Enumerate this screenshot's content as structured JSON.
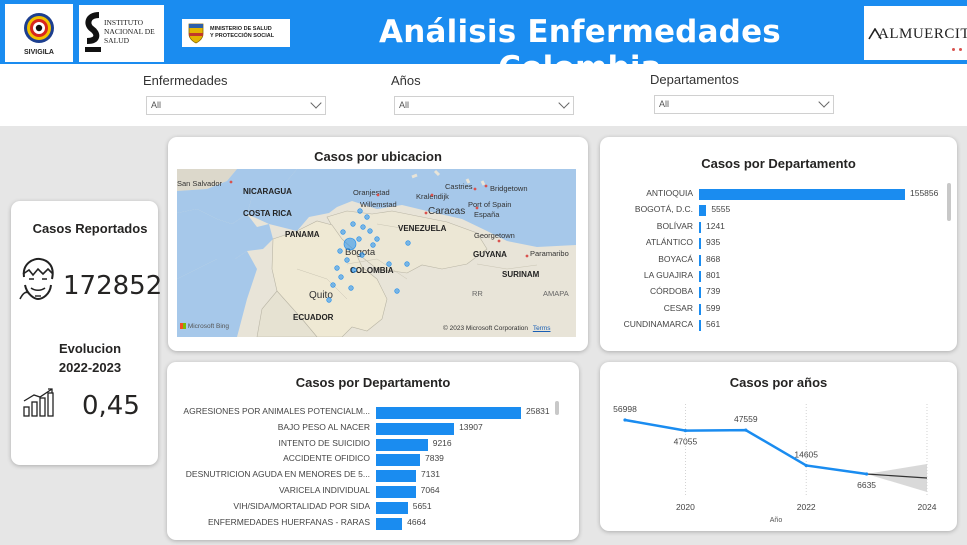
{
  "header": {
    "title": "Análisis Enfermedades Colombia",
    "logos": {
      "sivigila": "SIVIGILA",
      "ins_line1": "Instituto",
      "ins_line2": "Nacional de",
      "ins_line3": "Salud",
      "minsalud_line1": "MINISTERIO DE SALUD",
      "minsalud_line2": "Y PROTECCIÓN SOCIAL",
      "almuercito": "ALMUERCITO"
    },
    "accent_color": "#1a8cf0"
  },
  "filters": [
    {
      "label": "Enfermedades",
      "value": "All"
    },
    {
      "label": "Años",
      "value": "All"
    },
    {
      "label": "Departamentos",
      "value": "All"
    }
  ],
  "kpis": {
    "casos_label": "Casos Reportados",
    "casos_value": "172852",
    "evol_label_1": "Evolucion",
    "evol_label_2": "2022-2023",
    "evol_value": "0,45"
  },
  "map_card": {
    "title": "Casos por ubicacion",
    "labels": [
      "San Salvador",
      "NICARAGUA",
      "COSTA RICA",
      "PANAMA",
      "Oranjestad",
      "Willemstad",
      "Kralendijk",
      "Castries",
      "Bridgetown",
      "Port of Spain",
      "Caracas",
      "España",
      "VENEZUELA",
      "Georgetown",
      "GUYANA",
      "Paramaribo",
      "SURINAM",
      "Bogota",
      "COLOMBIA",
      "Quito",
      "ECUADOR",
      "RR",
      "AMAPA"
    ],
    "copyright": "© 2023 Microsoft Corporation",
    "terms": "Terms",
    "bing": "Microsoft Bing"
  },
  "dept_chart": {
    "title": "Casos por Departamento",
    "chart_data": {
      "type": "bar",
      "orientation": "horizontal",
      "categories": [
        "ANTIOQUIA",
        "BOGOTÁ, D.C.",
        "BOLÍVAR",
        "ATLÁNTICO",
        "BOYACÁ",
        "LA GUAJIRA",
        "CÓRDOBA",
        "CESAR",
        "CUNDINAMARCA"
      ],
      "values": [
        155856,
        5555,
        1241,
        935,
        868,
        801,
        739,
        599,
        561
      ],
      "labels": [
        "155856",
        "5555",
        "1241",
        "935",
        "868",
        "801",
        "739",
        "599",
        "561"
      ]
    }
  },
  "disease_chart": {
    "title": "Casos por Departamento",
    "chart_data": {
      "type": "bar",
      "orientation": "horizontal",
      "categories": [
        "AGRESIONES POR ANIMALES POTENCIALM...",
        "BAJO PESO AL NACER",
        "INTENTO DE SUICIDIO",
        "ACCIDENTE OFIDICO",
        "DESNUTRICION AGUDA EN MENORES DE 5...",
        "VARICELA INDIVIDUAL",
        "VIH/SIDA/MORTALIDAD POR SIDA",
        "ENFERMEDADES HUERFANAS - RARAS"
      ],
      "values": [
        25831,
        13907,
        9216,
        7839,
        7131,
        7064,
        5651,
        4664
      ],
      "labels": [
        "25831",
        "13907",
        "9216",
        "7839",
        "7131",
        "7064",
        "5651",
        "4664"
      ]
    }
  },
  "year_chart": {
    "title": "Casos por años",
    "chart_data": {
      "type": "line",
      "x": [
        2019,
        2020,
        2021,
        2022,
        2023
      ],
      "values": [
        56998,
        47055,
        47559,
        14605,
        6635
      ],
      "labels": [
        "56998",
        "47055",
        "47559",
        "14605",
        "6635"
      ],
      "forecast_to": 2024,
      "ticks": [
        "2020",
        "2022",
        "2024"
      ],
      "xlabel": "Año",
      "xlim": [
        2019,
        2024
      ]
    }
  }
}
